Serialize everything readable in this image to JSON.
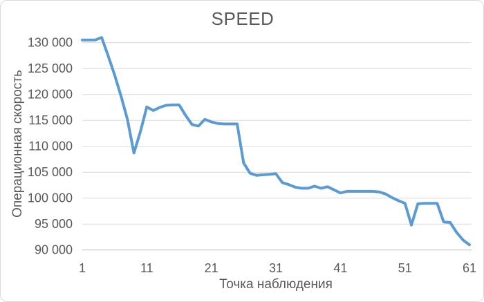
{
  "colors": {
    "series_line": "#5B9BD5",
    "gridline": "#D9D9D9",
    "axis_line": "#BFBFBF",
    "text": "#595959",
    "background": "#FFFFFF",
    "frame_border": "#D9D9D9"
  },
  "chart_data": {
    "type": "line",
    "title": "SPEED",
    "xlabel": "Точка наблюдения",
    "ylabel": "Операционная скорость",
    "legend": "none",
    "grid": "horizontal",
    "ylim": [
      90000,
      132000
    ],
    "y_tick_values": [
      90000,
      95000,
      100000,
      105000,
      110000,
      115000,
      120000,
      125000,
      130000
    ],
    "y_tick_labels": [
      "90 000",
      "95 000",
      "100 000",
      "105 000",
      "110 000",
      "115 000",
      "120 000",
      "125 000",
      "130 000"
    ],
    "x_ticks": [
      1,
      11,
      21,
      31,
      41,
      51,
      61
    ],
    "x": [
      1,
      2,
      3,
      4,
      5,
      6,
      7,
      8,
      9,
      10,
      11,
      12,
      13,
      14,
      15,
      16,
      17,
      18,
      19,
      20,
      21,
      22,
      23,
      24,
      25,
      26,
      27,
      28,
      29,
      30,
      31,
      32,
      33,
      34,
      35,
      36,
      37,
      38,
      39,
      40,
      41,
      42,
      43,
      44,
      45,
      46,
      47,
      48,
      49,
      50,
      51,
      52,
      53,
      54,
      55,
      56,
      57,
      58,
      59,
      60,
      61
    ],
    "series": [
      {
        "name": "SPEED",
        "values": [
          130500,
          130500,
          130500,
          131000,
          127500,
          123800,
          119700,
          115200,
          108700,
          112800,
          117600,
          116900,
          117500,
          117900,
          118000,
          118000,
          116000,
          114200,
          113900,
          115200,
          114700,
          114400,
          114300,
          114300,
          114300,
          106800,
          104800,
          104400,
          104500,
          104600,
          104700,
          103000,
          102600,
          102100,
          101900,
          101900,
          102300,
          101900,
          102200,
          101600,
          101000,
          101300,
          101300,
          101300,
          101300,
          101300,
          101200,
          100800,
          100100,
          99500,
          99000,
          94800,
          98900,
          99000,
          99000,
          99000,
          95400,
          95300,
          93400,
          91900,
          91000
        ]
      }
    ]
  }
}
